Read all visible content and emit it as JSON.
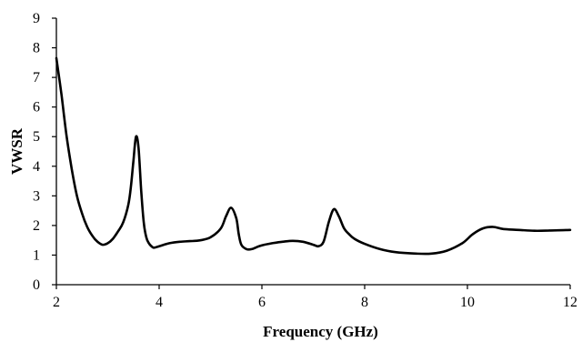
{
  "chart_data": {
    "type": "line",
    "title": "",
    "xlabel": "Frequency  (GHz)",
    "ylabel": "VWSR",
    "xlim": [
      2,
      12
    ],
    "ylim": [
      0,
      9
    ],
    "x_ticks": [
      2,
      4,
      6,
      8,
      10,
      12
    ],
    "y_ticks": [
      0,
      1,
      2,
      3,
      4,
      5,
      6,
      7,
      8,
      9
    ],
    "grid": false,
    "legend": "none",
    "line_color": "#000000",
    "series": [
      {
        "x": [
          2.0,
          2.1,
          2.2,
          2.3,
          2.4,
          2.5,
          2.6,
          2.7,
          2.8,
          2.9,
          3.0,
          3.1,
          3.2,
          3.3,
          3.4,
          3.45,
          3.5,
          3.55,
          3.6,
          3.65,
          3.7,
          3.75,
          3.8,
          3.85,
          3.9,
          4.0,
          4.2,
          4.4,
          4.6,
          4.8,
          5.0,
          5.2,
          5.3,
          5.4,
          5.5,
          5.55,
          5.6,
          5.7,
          5.8,
          5.9,
          6.0,
          6.2,
          6.4,
          6.6,
          6.8,
          7.0,
          7.1,
          7.2,
          7.3,
          7.4,
          7.5,
          7.6,
          7.7,
          7.8,
          8.0,
          8.3,
          8.6,
          9.0,
          9.3,
          9.6,
          9.9,
          10.1,
          10.3,
          10.5,
          10.7,
          11.0,
          11.3,
          11.6,
          12.0
        ],
        "y": [
          7.65,
          6.4,
          5.0,
          3.9,
          3.0,
          2.4,
          1.95,
          1.65,
          1.45,
          1.35,
          1.4,
          1.55,
          1.8,
          2.1,
          2.7,
          3.3,
          4.2,
          5.0,
          4.6,
          3.2,
          2.1,
          1.6,
          1.4,
          1.3,
          1.25,
          1.3,
          1.4,
          1.45,
          1.47,
          1.5,
          1.6,
          1.9,
          2.3,
          2.6,
          2.25,
          1.7,
          1.35,
          1.2,
          1.2,
          1.27,
          1.33,
          1.4,
          1.45,
          1.48,
          1.45,
          1.35,
          1.3,
          1.45,
          2.1,
          2.55,
          2.3,
          1.9,
          1.7,
          1.55,
          1.38,
          1.2,
          1.1,
          1.05,
          1.05,
          1.15,
          1.4,
          1.7,
          1.9,
          1.95,
          1.88,
          1.85,
          1.82,
          1.83,
          1.85
        ]
      }
    ]
  }
}
